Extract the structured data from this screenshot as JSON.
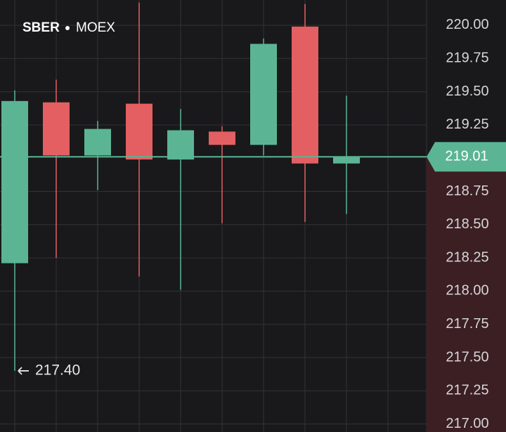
{
  "chart_data": {
    "type": "candlestick",
    "symbol": "SBER",
    "exchange": "MOEX",
    "open": [
      218.21,
      219.42,
      219.02,
      219.41,
      218.99,
      219.2,
      219.1,
      219.99,
      218.96
    ],
    "high": [
      219.51,
      219.59,
      219.28,
      220.17,
      219.37,
      219.24,
      219.9,
      220.16,
      219.47
    ],
    "low": [
      217.4,
      218.25,
      218.76,
      218.11,
      218.01,
      218.51,
      219.02,
      218.52,
      218.58
    ],
    "close": [
      219.43,
      219.02,
      219.22,
      218.99,
      219.21,
      219.1,
      219.86,
      218.96,
      219.01
    ],
    "up_color": "#5bb594",
    "down_color": "#e35f62",
    "ylim": [
      216.94,
      220.19
    ],
    "yticks": [
      {
        "value": 217,
        "label": "217.00"
      },
      {
        "value": 217.25,
        "label": "217.25"
      },
      {
        "value": 217.5,
        "label": "217.50"
      },
      {
        "value": 217.75,
        "label": "217.75"
      },
      {
        "value": 218,
        "label": "218.00"
      },
      {
        "value": 218.25,
        "label": "218.25"
      },
      {
        "value": 218.5,
        "label": "218.50"
      },
      {
        "value": 218.75,
        "label": "218.75"
      },
      {
        "value": 219.25,
        "label": "219.25"
      },
      {
        "value": 219.5,
        "label": "219.50"
      },
      {
        "value": 219.75,
        "label": "219.75"
      },
      {
        "value": 220,
        "label": "220.00"
      }
    ],
    "last_price": {
      "value": 219.01,
      "label": "219.01"
    },
    "low_marker": {
      "value": 217.4,
      "label": "217.40"
    },
    "grid": true
  }
}
